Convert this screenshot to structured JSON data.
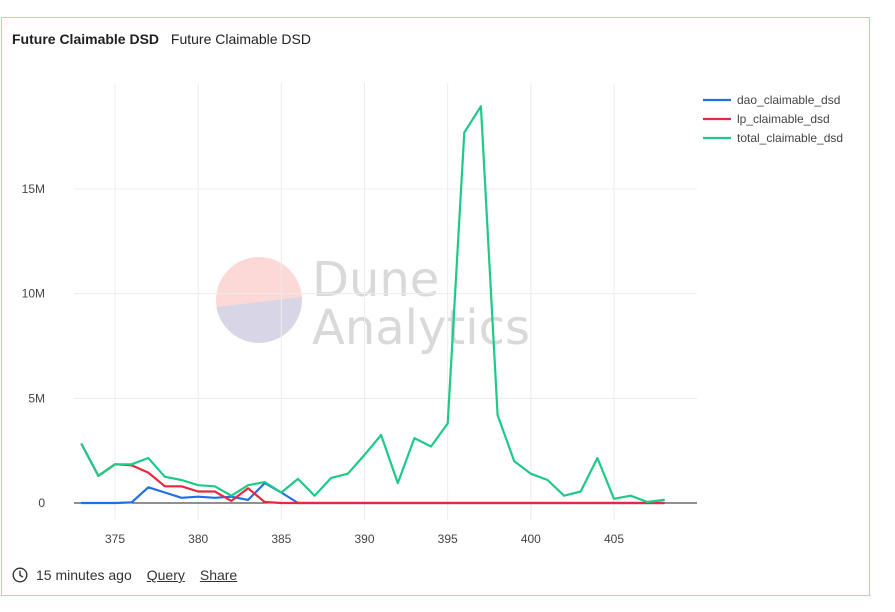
{
  "header": {
    "query_name": "Future Claimable DSD",
    "viz_title": "Future Claimable DSD"
  },
  "footer": {
    "timestamp": "15 minutes ago",
    "query_label": "Query",
    "share_label": "Share"
  },
  "watermark": {
    "line1": "Dune",
    "line2": "Analytics"
  },
  "chart_data": {
    "type": "line",
    "x": [
      373,
      374,
      375,
      376,
      377,
      378,
      379,
      380,
      381,
      382,
      383,
      384,
      385,
      386,
      387,
      388,
      389,
      390,
      391,
      392,
      393,
      394,
      395,
      396,
      397,
      398,
      399,
      400,
      401,
      402,
      403,
      404,
      405,
      406,
      407,
      408
    ],
    "xlim": [
      371.0,
      408.3
    ],
    "ylim": [
      -600000,
      20000000
    ],
    "x_ticks": [
      375,
      380,
      385,
      390,
      395,
      400,
      405
    ],
    "y_ticks": [
      0,
      5000000,
      10000000,
      15000000
    ],
    "y_tick_labels": [
      "0",
      "5M",
      "10M",
      "15M"
    ],
    "grid": true,
    "legend_position": "top-right",
    "series": [
      {
        "name": "dao_claimable_dsd",
        "color": "#1f6fe5",
        "values": [
          0,
          0,
          0,
          30000,
          750000,
          500000,
          250000,
          300000,
          250000,
          300000,
          150000,
          950000,
          500000,
          0,
          0,
          0,
          0,
          0,
          0,
          0,
          0,
          0,
          0,
          0,
          0,
          0,
          0,
          0,
          0,
          0,
          0,
          0,
          0,
          0,
          0,
          0
        ]
      },
      {
        "name": "lp_claimable_dsd",
        "color": "#e8283c",
        "values": [
          2800000,
          1300000,
          1850000,
          1800000,
          1450000,
          800000,
          800000,
          550000,
          550000,
          100000,
          700000,
          50000,
          0,
          0,
          0,
          0,
          0,
          0,
          0,
          0,
          0,
          0,
          0,
          0,
          0,
          0,
          0,
          0,
          0,
          0,
          0,
          0,
          0,
          0,
          0,
          0
        ]
      },
      {
        "name": "total_claimable_dsd",
        "color": "#1fc987",
        "values": [
          2800000,
          1300000,
          1850000,
          1850000,
          2150000,
          1250000,
          1100000,
          850000,
          800000,
          350000,
          850000,
          1000000,
          500000,
          1150000,
          350000,
          1200000,
          1400000,
          2300000,
          3250000,
          950000,
          3100000,
          2700000,
          3800000,
          17700000,
          18950000,
          4200000,
          2000000,
          1400000,
          1100000,
          350000,
          550000,
          2150000,
          200000,
          350000,
          50000,
          150000
        ]
      }
    ]
  }
}
